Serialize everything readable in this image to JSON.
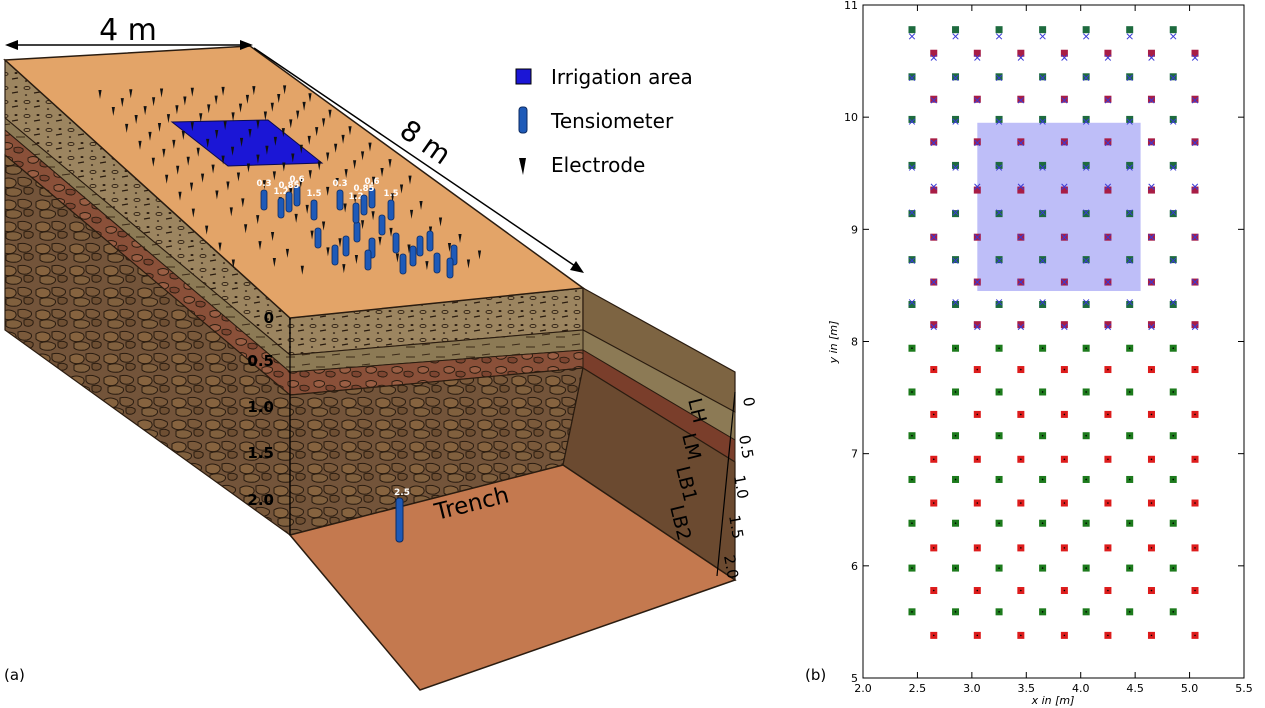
{
  "panel_a": {
    "label": "(a)",
    "dimension_width": "4 m",
    "dimension_length": "8 m",
    "legend": {
      "irrigation": "Irrigation area",
      "tensiometer": "Tensiometer",
      "electrode": "Electrode"
    },
    "depth_ticks_front": [
      "0",
      "0.5",
      "1.0",
      "1.5",
      "2.0"
    ],
    "depth_ticks_side": [
      "0",
      "0.5",
      "1.0",
      "1.5",
      "2.0"
    ],
    "layers": [
      "LH",
      "LM",
      "LB1",
      "LB2"
    ],
    "trench_label": "Trench",
    "tensiometer_depths": [
      "0.3",
      "0.6",
      "0.85",
      "1.2",
      "1.5",
      "0.3",
      "0.6",
      "0.85",
      "1.2",
      "1.5",
      "2.5"
    ],
    "colors": {
      "surface": "#e3a468",
      "irrigation": "#1b16d6",
      "tensiometer": "#1e5ab8",
      "trench_floor": "#c4794f",
      "layer_lh": "#9c8560",
      "layer_lm": "#8c7a55",
      "layer_lb1": "#8a5039",
      "layer_lb2": "#73543a"
    }
  },
  "panel_b": {
    "label": "(b)",
    "chart_data": {
      "type": "scatter",
      "xlabel": "x in [m]",
      "ylabel": "y in [m]",
      "xlim": [
        2.0,
        5.5
      ],
      "ylim": [
        5,
        11
      ],
      "xticks": [
        "2.0",
        "2.5",
        "3.0",
        "3.5",
        "4.0",
        "4.5",
        "5.0",
        "5.5"
      ],
      "yticks": [
        "5",
        "6",
        "7",
        "8",
        "9",
        "10",
        "11"
      ],
      "grid": false,
      "irrigation_area": {
        "x": [
          3.05,
          4.55
        ],
        "y": [
          8.45,
          9.95
        ],
        "color": "#b3b3f7"
      },
      "x_columns": [
        2.45,
        2.65,
        2.85,
        3.05,
        3.25,
        3.45,
        3.65,
        3.85,
        4.05,
        4.25,
        4.45,
        4.65,
        4.85,
        5.05
      ],
      "series": [
        {
          "marker": "square",
          "color": "#1d6b3e",
          "y_rows": [
            10.78,
            10.36,
            9.98,
            9.57,
            9.14,
            8.73,
            8.33
          ],
          "cols": "even"
        },
        {
          "marker": "square",
          "color": "#a81d45",
          "y_rows": [
            10.57,
            10.16,
            9.78,
            9.35,
            8.93,
            8.53,
            8.15
          ],
          "cols": "odd"
        },
        {
          "marker": "x",
          "color": "#3a3ad6",
          "y_rows": [
            10.72,
            10.53,
            10.35,
            10.15,
            9.96,
            9.77,
            9.55,
            9.38,
            9.15,
            8.93,
            8.72,
            8.53,
            8.35,
            8.13
          ],
          "cols": "alternate"
        },
        {
          "marker": "square",
          "color": "#1c7a1c",
          "y_rows": [
            7.94,
            7.55,
            7.16,
            6.77,
            6.38,
            5.98,
            5.59
          ],
          "cols": "even"
        },
        {
          "marker": "square",
          "color": "#dd1c1c",
          "y_rows": [
            7.75,
            7.35,
            6.95,
            6.56,
            6.16,
            5.78,
            5.38
          ],
          "cols": "odd"
        },
        {
          "marker": "dot",
          "color": "#000000",
          "y_rows": [
            7.94,
            7.75,
            7.55,
            7.35,
            7.16,
            6.95,
            6.77,
            6.56,
            6.38,
            6.16,
            5.98,
            5.78,
            5.59,
            5.38
          ],
          "cols": "alternate"
        }
      ]
    }
  }
}
